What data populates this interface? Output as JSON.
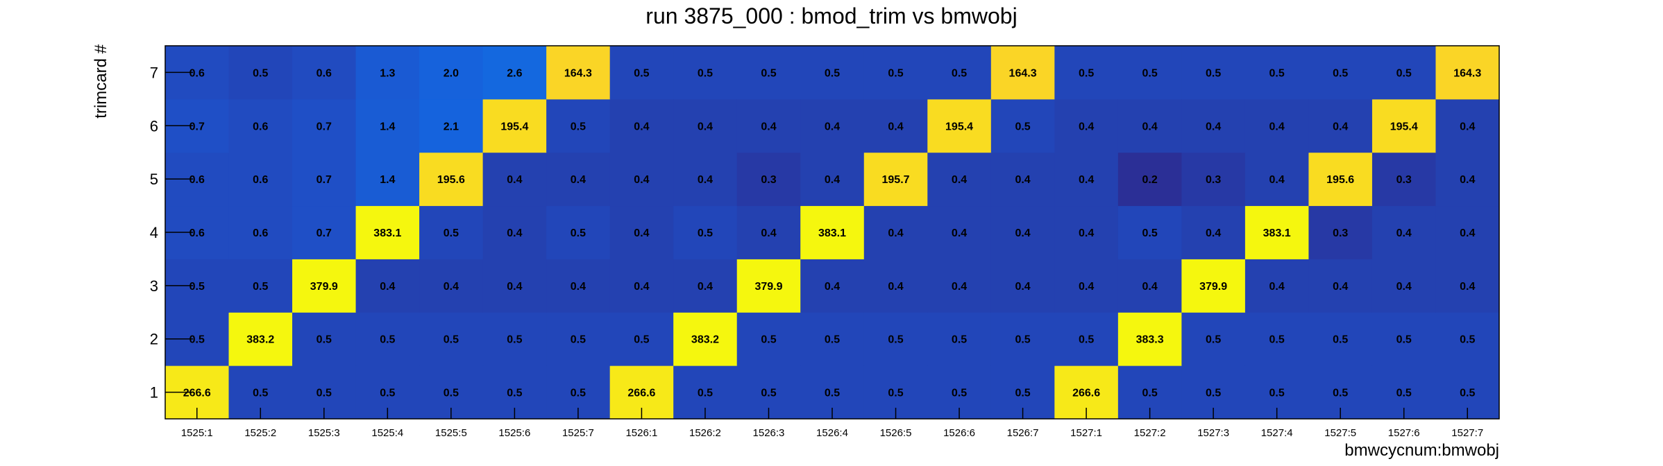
{
  "chart_data": {
    "type": "heatmap",
    "title": "run 3875_000 : bmod_trim vs bmwobj",
    "xlabel": "bmwcycnum:bmwobj",
    "ylabel": "trimcard #",
    "x_categories": [
      "1525:1",
      "1525:2",
      "1525:3",
      "1525:4",
      "1525:5",
      "1525:6",
      "1525:7",
      "1526:1",
      "1526:2",
      "1526:3",
      "1526:4",
      "1526:5",
      "1526:6",
      "1526:7",
      "1527:1",
      "1527:2",
      "1527:3",
      "1527:4",
      "1527:5",
      "1527:6",
      "1527:7"
    ],
    "y_categories": [
      "1",
      "2",
      "3",
      "4",
      "5",
      "6",
      "7"
    ],
    "values": [
      [
        266.6,
        0.5,
        0.5,
        0.5,
        0.5,
        0.5,
        0.5,
        266.6,
        0.5,
        0.5,
        0.5,
        0.5,
        0.5,
        0.5,
        266.6,
        0.5,
        0.5,
        0.5,
        0.5,
        0.5,
        0.5
      ],
      [
        0.5,
        383.2,
        0.5,
        0.5,
        0.5,
        0.5,
        0.5,
        0.5,
        383.2,
        0.5,
        0.5,
        0.5,
        0.5,
        0.5,
        0.5,
        383.3,
        0.5,
        0.5,
        0.5,
        0.5,
        0.5
      ],
      [
        0.5,
        0.5,
        379.9,
        0.4,
        0.4,
        0.4,
        0.4,
        0.4,
        0.4,
        379.9,
        0.4,
        0.4,
        0.4,
        0.4,
        0.4,
        0.4,
        379.9,
        0.4,
        0.4,
        0.4,
        0.4
      ],
      [
        0.6,
        0.6,
        0.7,
        383.1,
        0.5,
        0.4,
        0.5,
        0.4,
        0.5,
        0.4,
        383.1,
        0.4,
        0.4,
        0.4,
        0.4,
        0.5,
        0.4,
        383.1,
        0.3,
        0.4,
        0.4
      ],
      [
        0.6,
        0.6,
        0.7,
        1.4,
        195.6,
        0.4,
        0.4,
        0.4,
        0.4,
        0.3,
        0.4,
        195.7,
        0.4,
        0.4,
        0.4,
        0.2,
        0.3,
        0.4,
        195.6,
        0.3,
        0.4
      ],
      [
        0.7,
        0.6,
        0.7,
        1.4,
        2.1,
        195.4,
        0.5,
        0.4,
        0.4,
        0.4,
        0.4,
        0.4,
        195.4,
        0.5,
        0.4,
        0.4,
        0.4,
        0.4,
        0.4,
        195.4,
        0.4
      ],
      [
        0.6,
        0.5,
        0.6,
        1.3,
        2.0,
        2.6,
        164.3,
        0.5,
        0.5,
        0.5,
        0.5,
        0.5,
        0.5,
        164.3,
        0.5,
        0.5,
        0.5,
        0.5,
        0.5,
        0.5,
        164.3
      ]
    ],
    "color_scale": {
      "log": true,
      "stops": [
        "#2b2f96",
        "#1f4fc6",
        "#1466e0",
        "#0e9ccc",
        "#2fb3c0",
        "#fdc531",
        "#f5f70e"
      ]
    },
    "grid": false,
    "legend": "none"
  }
}
